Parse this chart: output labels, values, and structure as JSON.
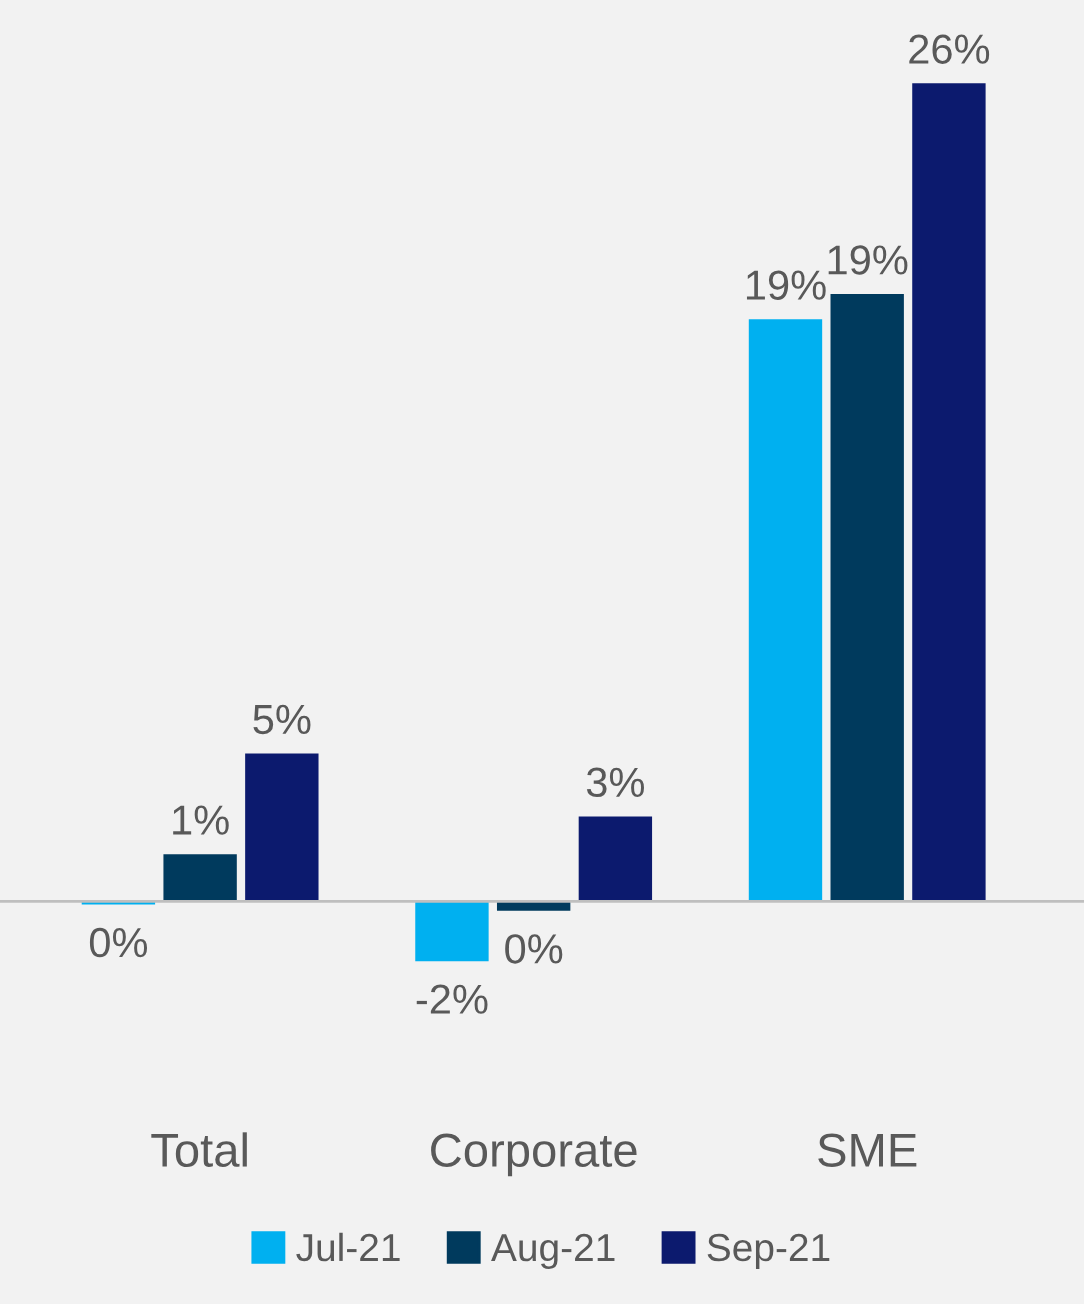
{
  "chart_data": {
    "type": "bar",
    "categories": [
      "Total",
      "Corporate",
      "SME"
    ],
    "series": [
      {
        "name": "Jul-21",
        "color": "#00b0f0",
        "values": [
          -0.1,
          -1.9,
          18.5
        ],
        "value_labels": [
          "0%",
          "-2%",
          "19%"
        ]
      },
      {
        "name": "Aug-21",
        "color": "#003a5d",
        "values": [
          1.5,
          -0.3,
          19.3
        ],
        "value_labels": [
          "1%",
          "0%",
          "19%"
        ]
      },
      {
        "name": "Sep-21",
        "color": "#0c1a6e",
        "values": [
          4.7,
          2.7,
          26.0
        ],
        "value_labels": [
          "5%",
          "3%",
          "26%"
        ]
      }
    ],
    "legend": "bottom",
    "grid": false
  }
}
